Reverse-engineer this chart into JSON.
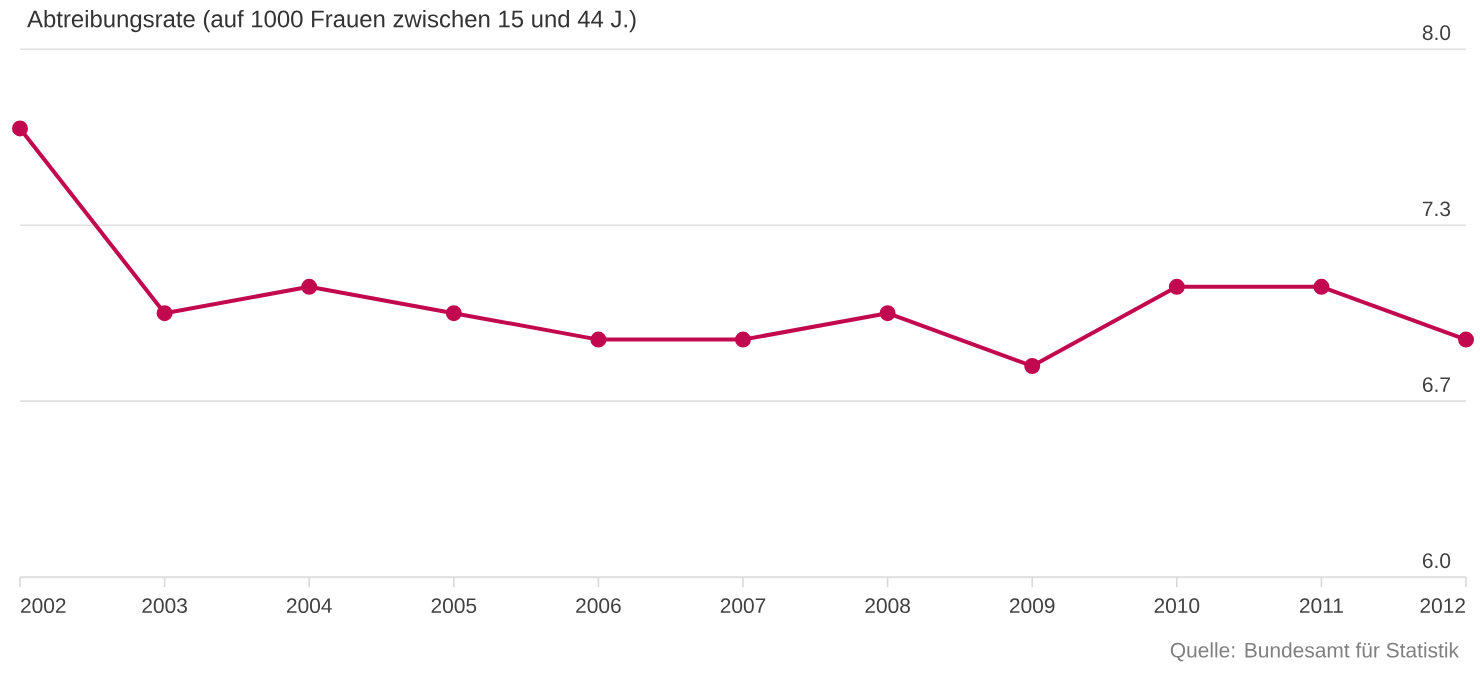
{
  "chart_data": {
    "type": "line",
    "title": "Abtreibungsrate (auf 1000 Frauen zwischen 15 und 44 J.)",
    "categories": [
      "2002",
      "2003",
      "2004",
      "2005",
      "2006",
      "2007",
      "2008",
      "2009",
      "2010",
      "2011",
      "2012"
    ],
    "series": [
      {
        "color": "#c2094f",
        "values": [
          7.7,
          7.0,
          7.1,
          7.0,
          6.9,
          6.9,
          7.0,
          6.8,
          7.1,
          7.1,
          6.9
        ]
      }
    ],
    "ylim": [
      6.0,
      8.0
    ],
    "yticks": [
      {
        "value": 6,
        "label": "6.0"
      },
      {
        "value": 6.667,
        "label": "6.7"
      },
      {
        "value": 7.333,
        "label": "7.3"
      },
      {
        "value": 8,
        "label": "8.0"
      }
    ],
    "grid": "y",
    "marker": "circle",
    "line_style": "solid",
    "annotations": [
      "Quelle: Bundesamt für Statistik"
    ]
  }
}
